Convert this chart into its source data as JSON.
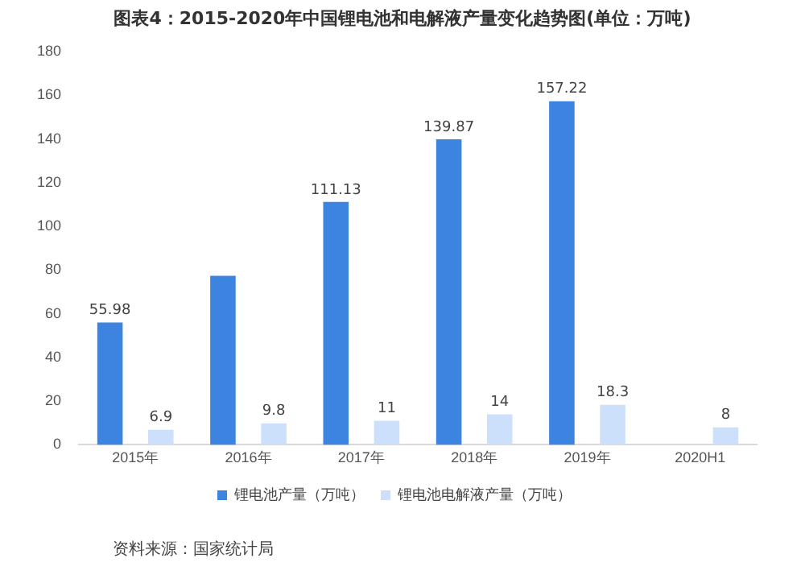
{
  "chart_data": {
    "type": "bar",
    "title": "图表4：2015-2020年中国锂电池和电解液产量变化趋势图(单位：万吨)",
    "categories": [
      "2015年",
      "2016年",
      "2017年",
      "2018年",
      "2019年",
      "2020H1"
    ],
    "series": [
      {
        "name": "锂电池产量（万吨）",
        "color": "#3c84e0",
        "values": [
          55.98,
          77.4,
          111.13,
          139.87,
          157.22,
          null
        ],
        "value_labels": [
          "55.98",
          null,
          "111.13",
          "139.87",
          "157.22",
          null
        ]
      },
      {
        "name": "锂电池电解液产量（万吨）",
        "color": "#cce0fb",
        "values": [
          6.9,
          9.8,
          11,
          14,
          18.3,
          8
        ],
        "value_labels": [
          "6.9",
          "9.8",
          "11",
          "14",
          "18.3",
          "8"
        ]
      }
    ],
    "ylim": [
      0,
      180
    ],
    "yticks": [
      0,
      20,
      40,
      60,
      80,
      100,
      120,
      140,
      160,
      180
    ],
    "grid": false,
    "legend": "bottom",
    "annotations": [
      "资料来源：国家统计局"
    ]
  }
}
